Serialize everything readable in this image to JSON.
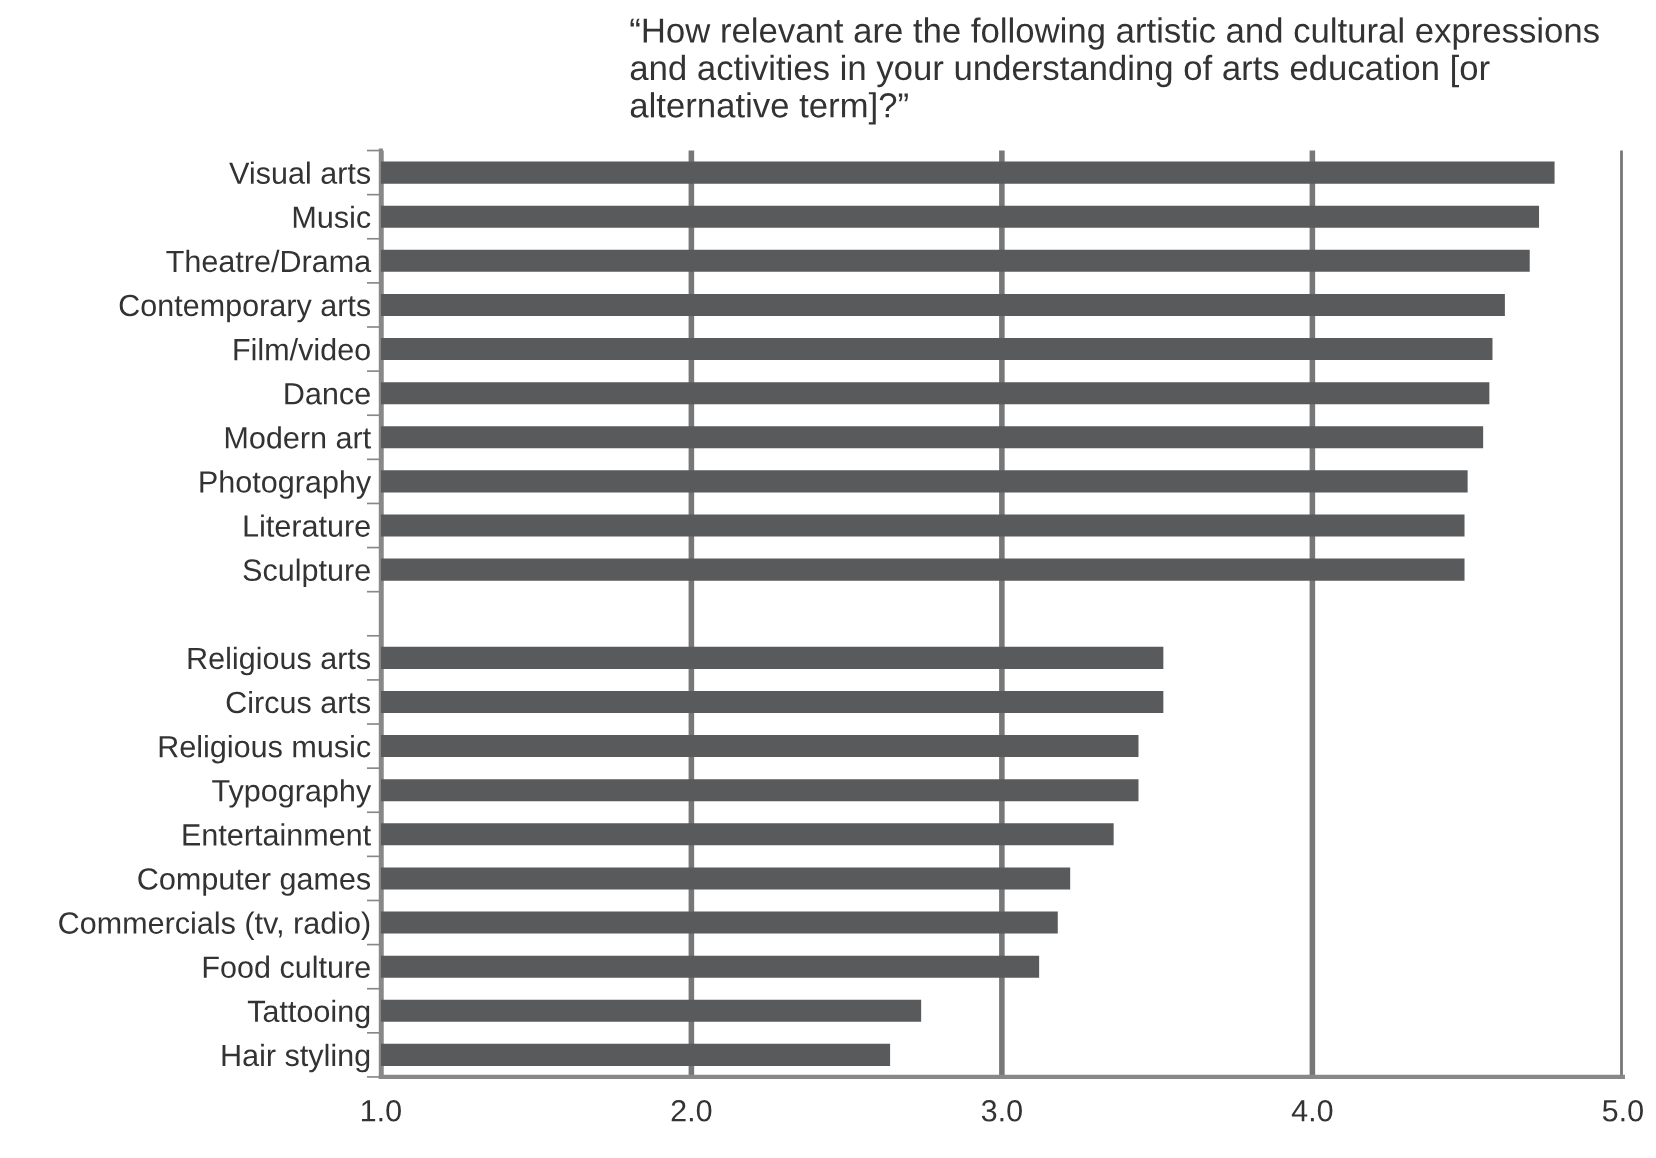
{
  "chart_data": {
    "type": "bar",
    "orientation": "horizontal",
    "title": "“How relevant are the following artistic and cultural expressions and activities in your understanding of arts education [or alternative term]?”",
    "categories": [
      "Visual arts",
      "Music",
      "Theatre/Drama",
      "Contemporary arts",
      "Film/video",
      "Dance",
      "Modern art",
      "Photography",
      "Literature",
      "Sculpture",
      null,
      "Religious arts",
      "Circus arts",
      "Religious music",
      "Typography",
      "Entertainment",
      "Computer games",
      "Commercials (tv, radio)",
      "Food culture",
      "Tattooing",
      "Hair styling"
    ],
    "values": [
      4.78,
      4.73,
      4.7,
      4.62,
      4.58,
      4.57,
      4.55,
      4.5,
      4.49,
      4.49,
      null,
      3.52,
      3.52,
      3.44,
      3.44,
      3.36,
      3.22,
      3.18,
      3.12,
      2.74,
      2.64
    ],
    "color": "#595a5c",
    "xlim": [
      1,
      5
    ],
    "xticks": [
      {
        "value": 1,
        "label": "1.0"
      },
      {
        "value": 2,
        "label": "2.0"
      },
      {
        "value": 3,
        "label": "3.0"
      },
      {
        "value": 4,
        "label": "4.0"
      },
      {
        "value": 5,
        "label": "5.0"
      }
    ],
    "grid": "x",
    "legend": false
  }
}
